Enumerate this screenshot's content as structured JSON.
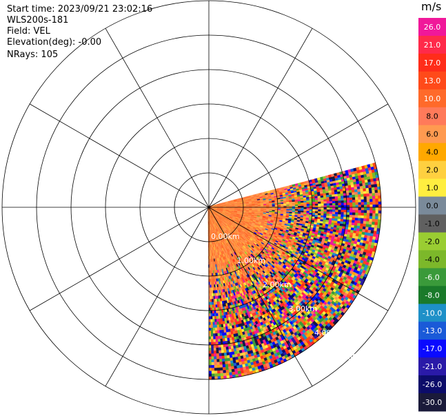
{
  "header": {
    "start_time": "Start time: 2023/09/21 23:02:16",
    "instrument": "WLS200s-181",
    "field": "Field: VEL",
    "elevation": "Elevation(deg): -0.00",
    "nrays": "NRays: 105"
  },
  "chart_data": {
    "type": "heatmap",
    "projection": "polar-ppi",
    "field": "VEL",
    "units": "m/s",
    "range_rings_km": [
      0.0,
      1.0,
      2.0,
      3.0,
      4.0,
      5.0
    ],
    "range_labels": [
      "0.00km",
      "1.00km",
      "2.00km",
      "3.00km",
      "4.00km",
      "5.00km"
    ],
    "spoke_angles_deg": [
      0,
      30,
      60,
      90,
      120,
      150,
      180,
      210,
      240,
      270,
      300,
      330
    ],
    "sector_azimuth_deg": [
      0,
      105
    ],
    "max_range_km": 5.0,
    "nrays": 105,
    "colorbar": {
      "label": "m/s",
      "min": -30,
      "max": 30,
      "ticks": [
        "26.0",
        "21.0",
        "17.0",
        "13.0",
        "10.0",
        "8.0",
        "6.0",
        "4.0",
        "2.0",
        "1.0",
        "0.0",
        "-1.0",
        "-2.0",
        "-4.0",
        "-6.0",
        "-8.0",
        "-10.0",
        "-13.0",
        "-17.0",
        "-21.0",
        "-26.0",
        "-30.0"
      ],
      "colors": [
        "#f0189a",
        "#ff2a4a",
        "#ff2d1a",
        "#ff4a1a",
        "#ff6a2a",
        "#ff7a5a",
        "#ff9a50",
        "#ffa800",
        "#ffd040",
        "#ffee40",
        "#7a8a9a",
        "#606060",
        "#9acd32",
        "#7cb82a",
        "#3a9a3a",
        "#1a7a2a",
        "#1e90c8",
        "#1a5ad8",
        "#0a0aff",
        "#2a1aa8",
        "#0c0c6a",
        "#1a1a3a"
      ]
    }
  }
}
